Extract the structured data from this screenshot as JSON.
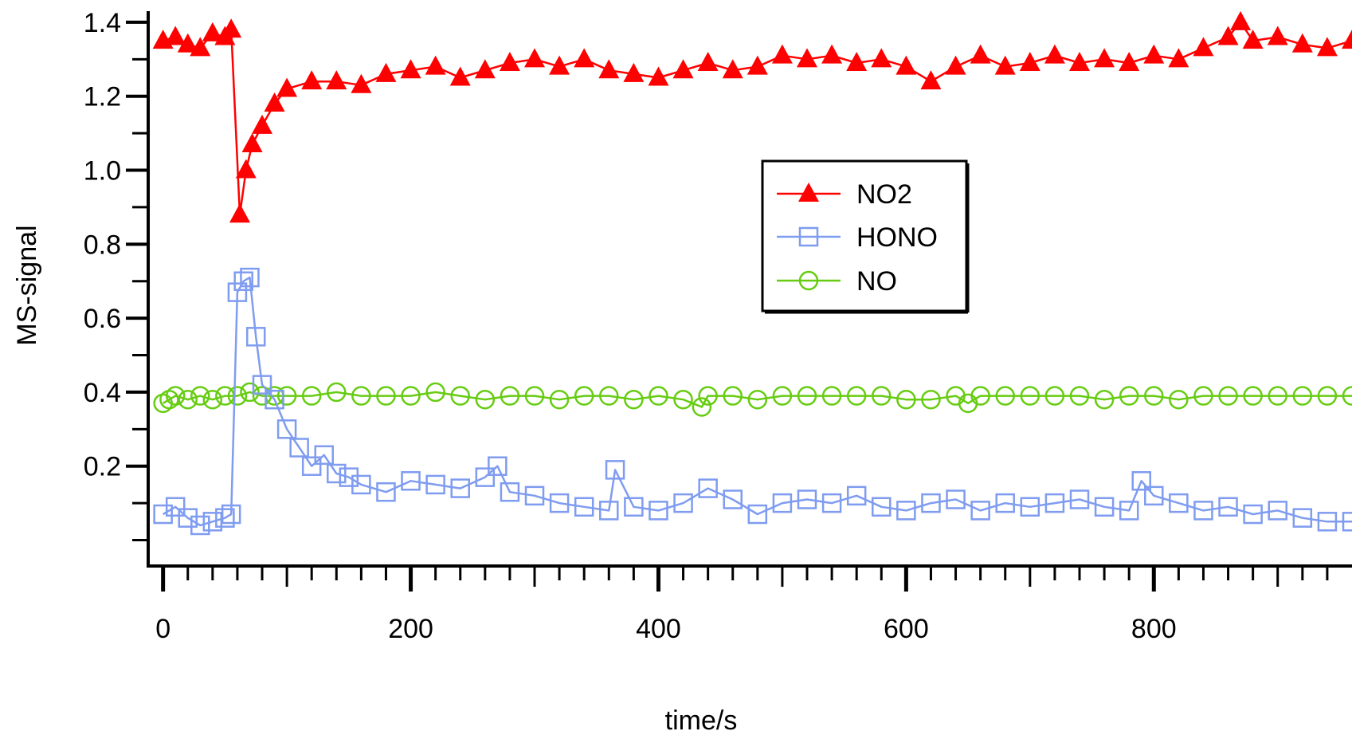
{
  "chart_data": {
    "type": "line",
    "title": "",
    "xlabel": "time/s",
    "ylabel": "MS-signal",
    "xlim": [
      -12,
      960
    ],
    "ylim": [
      -0.07,
      1.43
    ],
    "x_ticks": [
      0,
      200,
      400,
      600,
      800
    ],
    "x_tick_labels": [
      "0",
      "200",
      "400",
      "600",
      "800"
    ],
    "y_ticks": [
      0.2,
      0.4,
      0.6,
      0.8,
      1.0,
      1.2,
      1.4
    ],
    "y_tick_labels": [
      "0.2",
      "0.4",
      "0.6",
      "0.8",
      "1.0",
      "1.2",
      "1.4"
    ],
    "grid": false,
    "legend_position": "center-right",
    "series": [
      {
        "name": "NO2",
        "color": "#ff0000",
        "marker": "filled-triangle",
        "x": [
          0,
          10,
          20,
          30,
          40,
          50,
          55,
          62,
          67,
          72,
          80,
          90,
          100,
          120,
          140,
          160,
          180,
          200,
          220,
          240,
          260,
          280,
          300,
          320,
          340,
          360,
          380,
          400,
          420,
          440,
          460,
          480,
          500,
          520,
          540,
          560,
          580,
          600,
          620,
          640,
          660,
          680,
          700,
          720,
          740,
          760,
          780,
          800,
          820,
          840,
          860,
          870,
          880,
          900,
          920,
          940,
          960
        ],
        "y": [
          1.35,
          1.36,
          1.34,
          1.33,
          1.37,
          1.36,
          1.38,
          0.88,
          1.0,
          1.07,
          1.12,
          1.18,
          1.22,
          1.24,
          1.24,
          1.23,
          1.26,
          1.27,
          1.28,
          1.25,
          1.27,
          1.29,
          1.3,
          1.28,
          1.3,
          1.27,
          1.26,
          1.25,
          1.27,
          1.29,
          1.27,
          1.28,
          1.31,
          1.3,
          1.31,
          1.29,
          1.3,
          1.28,
          1.24,
          1.28,
          1.31,
          1.28,
          1.29,
          1.31,
          1.29,
          1.3,
          1.29,
          1.31,
          1.3,
          1.33,
          1.36,
          1.4,
          1.35,
          1.36,
          1.34,
          1.33,
          1.35
        ]
      },
      {
        "name": "HONO",
        "color": "#7f9cf0",
        "marker": "open-square",
        "x": [
          0,
          10,
          20,
          30,
          40,
          50,
          55,
          60,
          65,
          70,
          75,
          80,
          90,
          100,
          110,
          120,
          130,
          140,
          150,
          160,
          180,
          200,
          220,
          240,
          260,
          270,
          280,
          300,
          320,
          340,
          360,
          365,
          380,
          400,
          420,
          440,
          460,
          480,
          500,
          520,
          540,
          560,
          580,
          600,
          620,
          640,
          660,
          680,
          700,
          720,
          740,
          760,
          780,
          790,
          800,
          820,
          840,
          860,
          880,
          900,
          920,
          940,
          960
        ],
        "y": [
          0.07,
          0.09,
          0.06,
          0.04,
          0.05,
          0.06,
          0.07,
          0.67,
          0.7,
          0.71,
          0.55,
          0.42,
          0.38,
          0.3,
          0.25,
          0.2,
          0.23,
          0.18,
          0.17,
          0.15,
          0.13,
          0.16,
          0.15,
          0.14,
          0.17,
          0.2,
          0.13,
          0.12,
          0.1,
          0.09,
          0.08,
          0.19,
          0.09,
          0.08,
          0.1,
          0.14,
          0.11,
          0.07,
          0.1,
          0.11,
          0.1,
          0.12,
          0.09,
          0.08,
          0.1,
          0.11,
          0.08,
          0.1,
          0.09,
          0.1,
          0.11,
          0.09,
          0.08,
          0.16,
          0.12,
          0.1,
          0.08,
          0.09,
          0.07,
          0.08,
          0.06,
          0.05,
          0.05
        ]
      },
      {
        "name": "NO",
        "color": "#66cc11",
        "marker": "open-circle",
        "x": [
          0,
          5,
          10,
          20,
          30,
          40,
          50,
          60,
          70,
          80,
          90,
          100,
          120,
          140,
          160,
          180,
          200,
          220,
          240,
          260,
          280,
          300,
          320,
          340,
          360,
          380,
          400,
          420,
          435,
          440,
          460,
          480,
          500,
          520,
          540,
          560,
          580,
          600,
          620,
          640,
          650,
          660,
          680,
          700,
          720,
          740,
          760,
          780,
          800,
          820,
          840,
          860,
          880,
          900,
          920,
          940,
          960
        ],
        "y": [
          0.37,
          0.38,
          0.39,
          0.38,
          0.39,
          0.38,
          0.39,
          0.39,
          0.4,
          0.39,
          0.39,
          0.39,
          0.39,
          0.4,
          0.39,
          0.39,
          0.39,
          0.4,
          0.39,
          0.38,
          0.39,
          0.39,
          0.38,
          0.39,
          0.39,
          0.38,
          0.39,
          0.38,
          0.36,
          0.39,
          0.39,
          0.38,
          0.39,
          0.39,
          0.39,
          0.39,
          0.39,
          0.38,
          0.38,
          0.39,
          0.37,
          0.39,
          0.39,
          0.39,
          0.39,
          0.39,
          0.38,
          0.39,
          0.39,
          0.38,
          0.39,
          0.39,
          0.39,
          0.39,
          0.39,
          0.39,
          0.39
        ]
      }
    ]
  }
}
